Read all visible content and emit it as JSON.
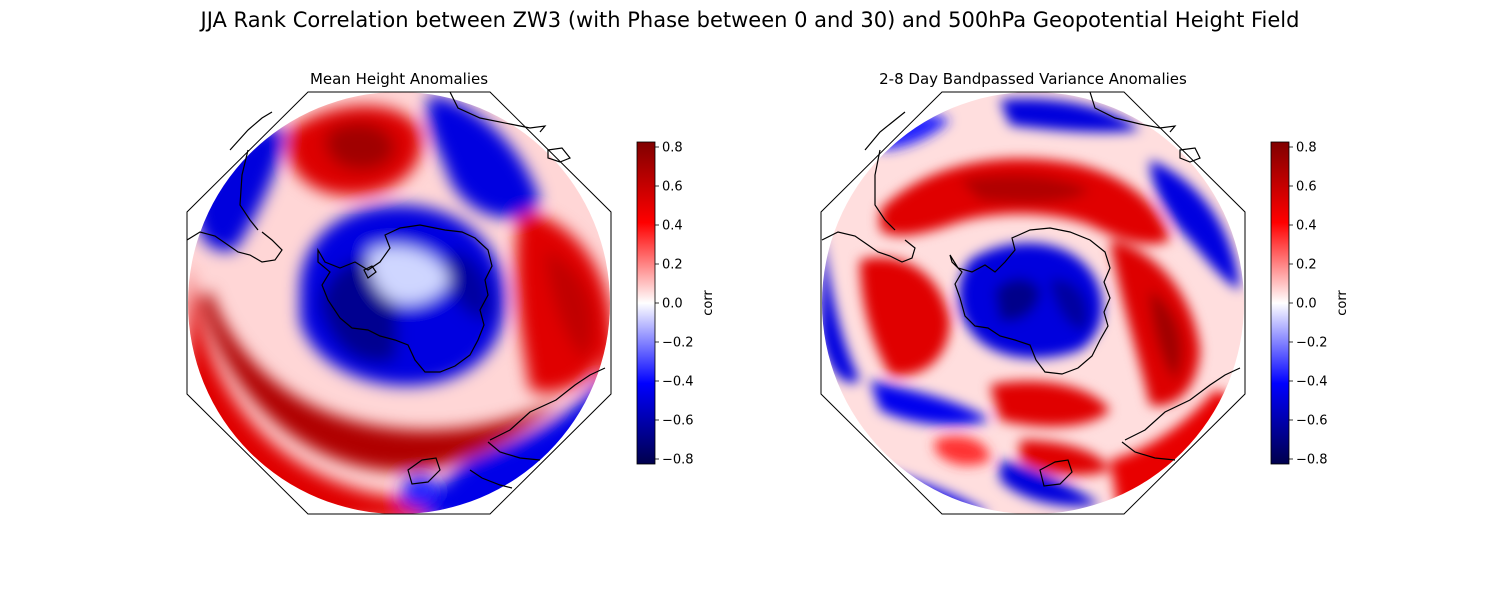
{
  "figure": {
    "title": "JJA Rank Correlation between ZW3 (with Phase between 0 and 30) and 500hPa Geopotential Height Field"
  },
  "panels": [
    {
      "title": "Mean Height Anomalies",
      "colorbar": {
        "label": "corr",
        "ticks": [
          "0.8",
          "0.6",
          "0.4",
          "0.2",
          "0.0",
          "−0.2",
          "−0.4",
          "−0.6",
          "−0.8"
        ]
      }
    },
    {
      "title": "2-8 Day Bandpassed Variance Anomalies",
      "colorbar": {
        "label": "corr",
        "ticks": [
          "0.8",
          "0.6",
          "0.4",
          "0.2",
          "0.0",
          "−0.2",
          "−0.4",
          "−0.6",
          "−0.8"
        ]
      }
    }
  ],
  "colors": {
    "negative_extreme": "#00004c",
    "negative": "#0000ff",
    "zero": "#ffffff",
    "positive": "#ff0000",
    "positive_extreme": "#800000",
    "coastline": "#000000"
  },
  "projection": "south polar stereographic"
}
